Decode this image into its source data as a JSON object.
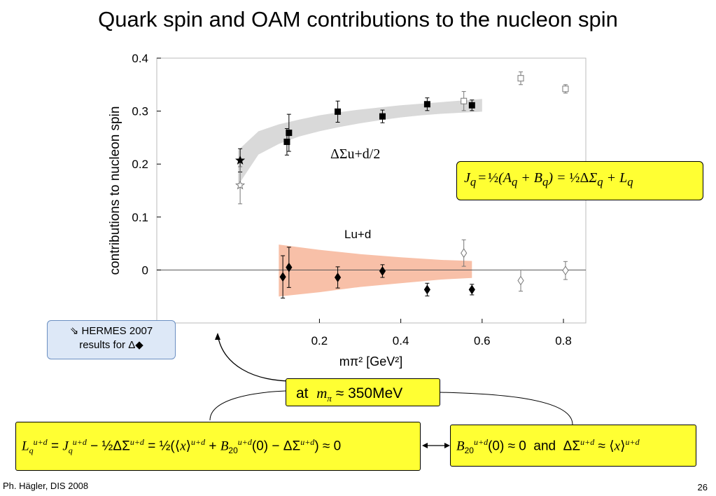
{
  "slide": {
    "title": "Quark spin and OAM contributions to the nucleon spin",
    "footer_left": "Ph. Hägler, DIS 2008",
    "page_number": "26"
  },
  "annotations": {
    "hermes_line1": "HERMES 2007",
    "hermes_line2": "results for Δ",
    "mpi_box_prefix": "at",
    "mpi_box_symbol": "m",
    "mpi_box_sub": "π",
    "mpi_box_value": "≈ 350MeV",
    "jq_formula": "J_q = ½(A_q + B_q) = ½ΔΣ_q + L_q",
    "lq_formula": "L_q^{u+d} = J_q^{u+d} − ½ΔΣ^{u+d} = ½(⟨x⟩^{u+d} + B_20^{u+d}(0) − ΔΣ^{u+d}) ≈ 0",
    "b20_formula": "B_20^{u+d}(0) ≈ 0 and ΔΣ^{u+d} ≈ ⟨x⟩^{u+d}"
  },
  "chart_data": {
    "type": "scatter",
    "xlabel": "mπ² [GeV²]",
    "ylabel": "contributions to nucleon spin",
    "xlim": [
      -0.2,
      0.855
    ],
    "ylim": [
      -0.1,
      0.4
    ],
    "xticks": [
      "0.2",
      "0.4",
      "0.6",
      "0.8"
    ],
    "yticks": [
      "0",
      "0.1",
      "0.2",
      "0.3",
      "0.4"
    ],
    "curve_labels": [
      "ΔΣu+d/2",
      "Lu+d"
    ],
    "series": [
      {
        "marker": "square-filled",
        "points": [
          [
            0.12,
            0.242,
            0.025
          ],
          [
            0.125,
            0.259,
            0.035
          ],
          [
            0.245,
            0.299,
            0.02
          ],
          [
            0.355,
            0.29,
            0.012
          ],
          [
            0.465,
            0.313,
            0.012
          ],
          [
            0.575,
            0.311,
            0.01
          ]
        ]
      },
      {
        "marker": "square-open",
        "points": [
          [
            0.555,
            0.319,
            0.018
          ],
          [
            0.695,
            0.362,
            0.012
          ],
          [
            0.805,
            0.342,
            0.008
          ]
        ]
      },
      {
        "marker": "star-filled",
        "points": [
          [
            0.005,
            0.207,
            0.022
          ]
        ]
      },
      {
        "marker": "star-open",
        "points": [
          [
            0.005,
            0.16,
            0.035
          ]
        ]
      },
      {
        "marker": "diamond-filled",
        "points": [
          [
            0.11,
            -0.013,
            0.04
          ],
          [
            0.125,
            0.005,
            0.038
          ],
          [
            0.245,
            -0.014,
            0.02
          ],
          [
            0.355,
            -0.002,
            0.012
          ],
          [
            0.465,
            -0.037,
            0.012
          ],
          [
            0.575,
            -0.037,
            0.01
          ]
        ]
      },
      {
        "marker": "diamond-open",
        "points": [
          [
            0.555,
            0.032,
            0.025
          ],
          [
            0.695,
            -0.02,
            0.02
          ],
          [
            0.805,
            -0.001,
            0.017
          ]
        ]
      }
    ],
    "bands": [
      {
        "name": "ΔΣ/2 band",
        "color": "#d9d9d9",
        "x": [
          0.0,
          0.05,
          0.1,
          0.15,
          0.2,
          0.25,
          0.3,
          0.35,
          0.4,
          0.45,
          0.5,
          0.55,
          0.6
        ],
        "lower": [
          0.16,
          0.218,
          0.238,
          0.252,
          0.262,
          0.27,
          0.277,
          0.283,
          0.288,
          0.292,
          0.295,
          0.297,
          0.299
        ],
        "upper": [
          0.226,
          0.262,
          0.275,
          0.284,
          0.292,
          0.298,
          0.303,
          0.307,
          0.311,
          0.314,
          0.317,
          0.32,
          0.323
        ]
      },
      {
        "name": "L band",
        "color": "#f8c0a8",
        "x": [
          0.1,
          0.2,
          0.3,
          0.4,
          0.5,
          0.575
        ],
        "lower": [
          -0.05,
          -0.042,
          -0.032,
          -0.025,
          -0.018,
          -0.015
        ],
        "upper": [
          0.048,
          0.038,
          0.03,
          0.024,
          0.019,
          0.017
        ]
      }
    ]
  }
}
